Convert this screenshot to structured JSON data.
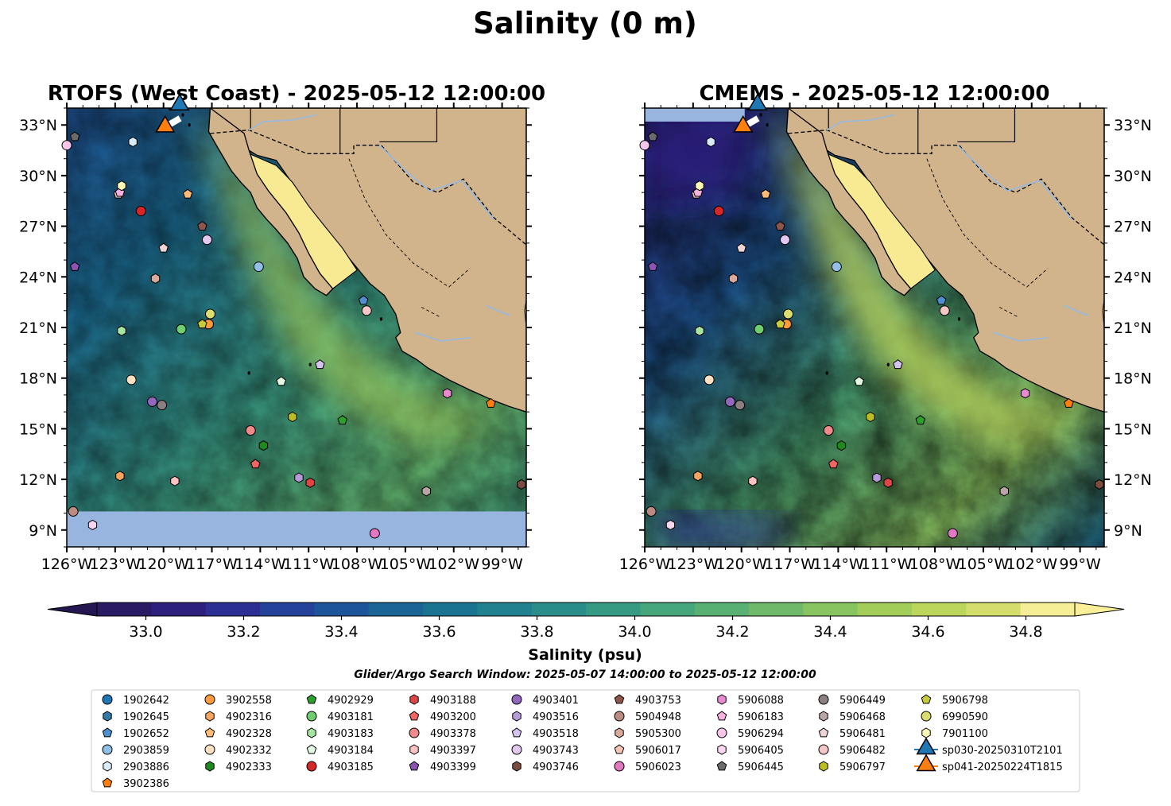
{
  "figure": {
    "title": "Salinity (0 m)",
    "colorbar_label": "Salinity (psu)",
    "search_window": "Glider/Argo Search Window: 2025-05-07 14:00:00 to 2025-05-12 12:00:00"
  },
  "chart_data": [
    {
      "type": "heatmap",
      "title": "RTOFS (West Coast) - 2025-05-12 12:00:00",
      "xlim": [
        -126,
        -97.5
      ],
      "ylim": [
        8,
        34
      ],
      "x_ticks": [
        "126°W",
        "123°W",
        "120°W",
        "117°W",
        "114°W",
        "111°W",
        "108°W",
        "105°W",
        "102°W",
        "99°W"
      ],
      "y_ticks": [
        "9°N",
        "12°N",
        "15°N",
        "18°N",
        "21°N",
        "24°N",
        "27°N",
        "30°N",
        "33°N"
      ],
      "y_tick_side": "left",
      "nodata_below_lat": 10.1,
      "field": "sea surface salinity (psu)"
    },
    {
      "type": "heatmap",
      "title": "CMEMS - 2025-05-12 12:00:00",
      "xlim": [
        -126,
        -97.5
      ],
      "ylim": [
        8,
        34
      ],
      "x_ticks": [
        "126°W",
        "123°W",
        "120°W",
        "117°W",
        "114°W",
        "111°W",
        "108°W",
        "105°W",
        "102°W",
        "99°W"
      ],
      "y_ticks": [
        "9°N",
        "12°N",
        "15°N",
        "18°N",
        "21°N",
        "24°N",
        "27°N",
        "30°N",
        "33°N"
      ],
      "y_tick_side": "right",
      "nodata_below_lat": null,
      "field": "sea surface salinity (psu)"
    }
  ],
  "colorbar": {
    "vmin": 32.9,
    "vmax": 34.9,
    "step": 0.1,
    "extend": "both",
    "tick_labels": [
      "33.0",
      "33.2",
      "33.4",
      "33.6",
      "33.8",
      "34.0",
      "34.2",
      "34.4",
      "34.6",
      "34.8"
    ],
    "colors": [
      "#2a1a63",
      "#2d1f7e",
      "#2b2e92",
      "#24429a",
      "#1e559a",
      "#1a6596",
      "#1b7392",
      "#22818e",
      "#2a8d89",
      "#369982",
      "#45a57b",
      "#58b073",
      "#6fba6a",
      "#88c460",
      "#a2cd59",
      "#bcd65c",
      "#d3de6d",
      "#f6ee96"
    ],
    "under_color": "#241651",
    "over_color": "#fbef97"
  },
  "map_colors": {
    "land": "#d2b48c",
    "nodata": "#98b5e0",
    "baja_fill": "#f8ea92",
    "river": "#9bb9d9"
  },
  "floats": [
    {
      "id": "1902642",
      "marker": "circle",
      "color": "#1f77b4",
      "lon": null,
      "lat": null
    },
    {
      "id": "1902645",
      "marker": "hexagon",
      "color": "#3579a8",
      "lon": null,
      "lat": null
    },
    {
      "id": "1902652",
      "marker": "pentagon",
      "color": "#4d8fd1",
      "lon": -107.6,
      "lat": 22.6
    },
    {
      "id": "2903859",
      "marker": "circle",
      "color": "#91bfe8",
      "lon": -114.1,
      "lat": 24.6
    },
    {
      "id": "2903886",
      "marker": "hexagon",
      "color": "#d8ecfb",
      "lon": -121.9,
      "lat": 32.0
    },
    {
      "id": "3902386",
      "marker": "pentagon",
      "color": "#ff7f0e",
      "lon": -99.7,
      "lat": 16.5
    },
    {
      "id": "3902558",
      "marker": "circle",
      "color": "#ff9a3d",
      "lon": -117.2,
      "lat": 21.2
    },
    {
      "id": "4902316",
      "marker": "hexagon",
      "color": "#f6a45f",
      "lon": -122.7,
      "lat": 12.2
    },
    {
      "id": "4902328",
      "marker": "pentagon",
      "color": "#ffbb77",
      "lon": -118.5,
      "lat": 28.9
    },
    {
      "id": "4902332",
      "marker": "circle",
      "color": "#fde0c1",
      "lon": -122.0,
      "lat": 17.9
    },
    {
      "id": "4902333",
      "marker": "hexagon",
      "color": "#1e8a1e",
      "lon": -113.8,
      "lat": 14.0
    },
    {
      "id": "4902929",
      "marker": "pentagon",
      "color": "#2ca02c",
      "lon": -108.9,
      "lat": 15.5
    },
    {
      "id": "4903181",
      "marker": "circle",
      "color": "#6fce6f",
      "lon": -118.9,
      "lat": 20.9
    },
    {
      "id": "4903183",
      "marker": "hexagon",
      "color": "#a6e6a1",
      "lon": -122.6,
      "lat": 20.8
    },
    {
      "id": "4903184",
      "marker": "pentagon",
      "color": "#e3f9e1",
      "lon": -112.7,
      "lat": 17.8
    },
    {
      "id": "4903185",
      "marker": "circle",
      "color": "#d62728",
      "lon": -121.4,
      "lat": 27.9
    },
    {
      "id": "4903188",
      "marker": "hexagon",
      "color": "#e04545",
      "lon": -110.9,
      "lat": 11.8
    },
    {
      "id": "4903200",
      "marker": "pentagon",
      "color": "#f26565",
      "lon": -114.3,
      "lat": 12.9
    },
    {
      "id": "4903378",
      "marker": "circle",
      "color": "#f08a8a",
      "lon": -114.6,
      "lat": 14.9
    },
    {
      "id": "4903397",
      "marker": "hexagon",
      "color": "#ffc2c2",
      "lon": -119.3,
      "lat": 11.9
    },
    {
      "id": "4903399",
      "marker": "pentagon",
      "color": "#8b54b0",
      "lon": -125.5,
      "lat": 24.6
    },
    {
      "id": "4903401",
      "marker": "circle",
      "color": "#9467bd",
      "lon": -120.7,
      "lat": 16.6
    },
    {
      "id": "4903516",
      "marker": "hexagon",
      "color": "#b79ad9",
      "lon": -111.6,
      "lat": 12.1
    },
    {
      "id": "4903518",
      "marker": "pentagon",
      "color": "#d6c3ee",
      "lon": -110.3,
      "lat": 18.8
    },
    {
      "id": "4903743",
      "marker": "circle",
      "color": "#e3c9f2",
      "lon": -117.3,
      "lat": 26.2
    },
    {
      "id": "4903746",
      "marker": "hexagon",
      "color": "#7b4b3f",
      "lon": -97.8,
      "lat": 11.7
    },
    {
      "id": "4903753",
      "marker": "pentagon",
      "color": "#8c564b",
      "lon": -117.6,
      "lat": 27.0
    },
    {
      "id": "5904948",
      "marker": "circle",
      "color": "#bb8a80",
      "lon": -125.6,
      "lat": 10.1
    },
    {
      "id": "5905300",
      "marker": "hexagon",
      "color": "#d9a99c",
      "lon": -120.5,
      "lat": 23.9
    },
    {
      "id": "5906017",
      "marker": "pentagon",
      "color": "#f7c5b5",
      "lon": -122.8,
      "lat": 28.9
    },
    {
      "id": "5906023",
      "marker": "circle",
      "color": "#e377c2",
      "lon": -106.9,
      "lat": 8.8
    },
    {
      "id": "5906088",
      "marker": "hexagon",
      "color": "#e98ad0",
      "lon": -102.4,
      "lat": 17.1
    },
    {
      "id": "5906183",
      "marker": "pentagon",
      "color": "#f6b1de",
      "lon": -122.7,
      "lat": 29.0
    },
    {
      "id": "5906294",
      "marker": "circle",
      "color": "#f6c7eb",
      "lon": -126.0,
      "lat": 31.8
    },
    {
      "id": "5906405",
      "marker": "hexagon",
      "color": "#fbd6f1",
      "lon": -124.4,
      "lat": 9.3
    },
    {
      "id": "5906445",
      "marker": "pentagon",
      "color": "#6b6b6b",
      "lon": -125.5,
      "lat": 32.3
    },
    {
      "id": "5906449",
      "marker": "circle",
      "color": "#8b7f7f",
      "lon": -120.1,
      "lat": 16.4
    },
    {
      "id": "5906468",
      "marker": "hexagon",
      "color": "#b8a6a6",
      "lon": -103.7,
      "lat": 11.3
    },
    {
      "id": "5906481",
      "marker": "pentagon",
      "color": "#eed4d4",
      "lon": -120.0,
      "lat": 25.7
    },
    {
      "id": "5906482",
      "marker": "circle",
      "color": "#f5c6c6",
      "lon": -107.4,
      "lat": 22.0
    },
    {
      "id": "5906797",
      "marker": "hexagon",
      "color": "#bcbd22",
      "lon": -112.0,
      "lat": 15.7
    },
    {
      "id": "5906798",
      "marker": "pentagon",
      "color": "#c9cc3a",
      "lon": -117.6,
      "lat": 21.2
    },
    {
      "id": "6990590",
      "marker": "circle",
      "color": "#dbde6f",
      "lon": -117.1,
      "lat": 21.8
    },
    {
      "id": "7901100",
      "marker": "hexagon",
      "color": "#fafab5",
      "lon": -122.6,
      "lat": 29.4
    }
  ],
  "gliders": [
    {
      "id": "sp030-20250310T2101",
      "marker": "triangle",
      "color": "#1f77b4",
      "lon": -119.0,
      "lat": 34.2
    },
    {
      "id": "sp041-20250224T1815",
      "marker": "triangle",
      "color": "#ff7f0e",
      "lon": -119.9,
      "lat": 32.9
    }
  ]
}
